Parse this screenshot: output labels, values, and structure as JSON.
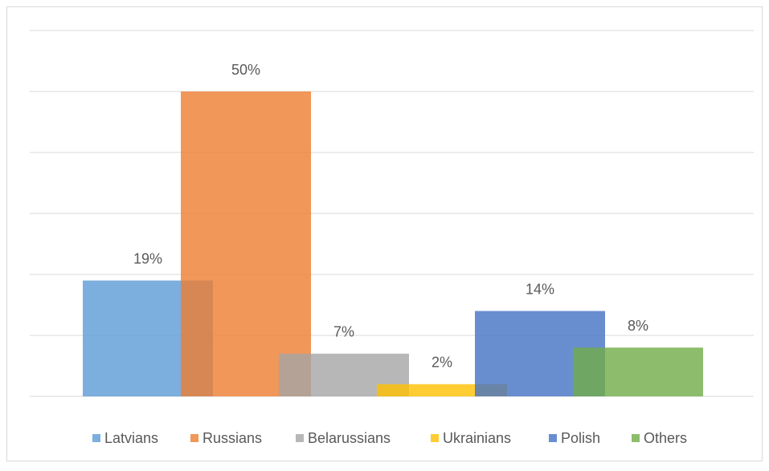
{
  "chart_data": {
    "type": "bar",
    "categories": [
      "Latvians",
      "Russians",
      "Belarussians",
      "Ukrainians",
      "Polish",
      "Others"
    ],
    "values": [
      19,
      50,
      7,
      2,
      14,
      8
    ],
    "value_labels": [
      "19%",
      "50%",
      "7%",
      "2%",
      "14%",
      "8%"
    ],
    "colors": [
      "#5b9bd5",
      "#ed7d31",
      "#a5a5a5",
      "#ffc000",
      "#4472c4",
      "#70ad47"
    ],
    "ylim": [
      0,
      60
    ],
    "yticks": [
      0,
      10,
      20,
      30,
      40,
      50,
      60
    ],
    "grid": true,
    "legend": "bottom"
  }
}
